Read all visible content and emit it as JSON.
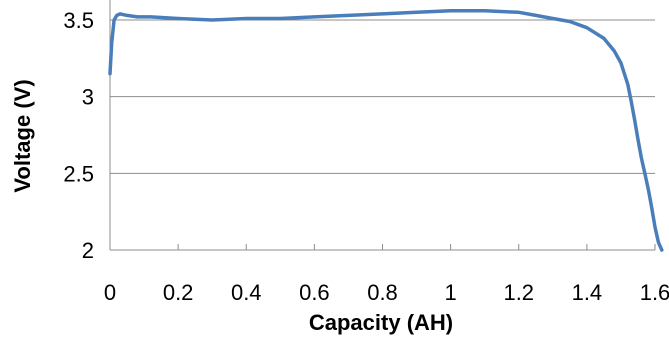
{
  "chart_data": {
    "type": "line",
    "title": "",
    "xlabel": "Capacity (AH)",
    "ylabel": "Voltage (V)",
    "xlim": [
      0,
      1.6
    ],
    "ylim": [
      2,
      3.5
    ],
    "x_ticks": [
      0,
      0.2,
      0.4,
      0.6,
      0.8,
      1,
      1.2,
      1.4,
      1.6
    ],
    "x_tick_labels": [
      "0",
      "0.2",
      "0.4",
      "0.6",
      "0.8",
      "1",
      "1.2",
      "1.4",
      "1.6"
    ],
    "y_ticks": [
      2,
      2.5,
      3,
      3.5
    ],
    "y_tick_labels": [
      "2",
      "2.5",
      "3",
      "3.5"
    ],
    "grid": "horizontal",
    "legend": "none",
    "series": [
      {
        "color": "#4a7ebb",
        "x": [
          0,
          0.005,
          0.012,
          0.02,
          0.03,
          0.05,
          0.08,
          0.12,
          0.2,
          0.3,
          0.4,
          0.5,
          0.6,
          0.7,
          0.8,
          0.9,
          1.0,
          1.1,
          1.2,
          1.25,
          1.3,
          1.35,
          1.4,
          1.45,
          1.48,
          1.5,
          1.52,
          1.53,
          1.54,
          1.55,
          1.56,
          1.57,
          1.58,
          1.59,
          1.6,
          1.61,
          1.62
        ],
        "y": [
          3.15,
          3.35,
          3.5,
          3.53,
          3.54,
          3.53,
          3.52,
          3.52,
          3.51,
          3.5,
          3.51,
          3.51,
          3.52,
          3.53,
          3.54,
          3.55,
          3.56,
          3.56,
          3.55,
          3.53,
          3.51,
          3.49,
          3.45,
          3.38,
          3.3,
          3.22,
          3.08,
          2.97,
          2.85,
          2.72,
          2.6,
          2.5,
          2.4,
          2.28,
          2.15,
          2.05,
          2.0
        ]
      }
    ]
  }
}
